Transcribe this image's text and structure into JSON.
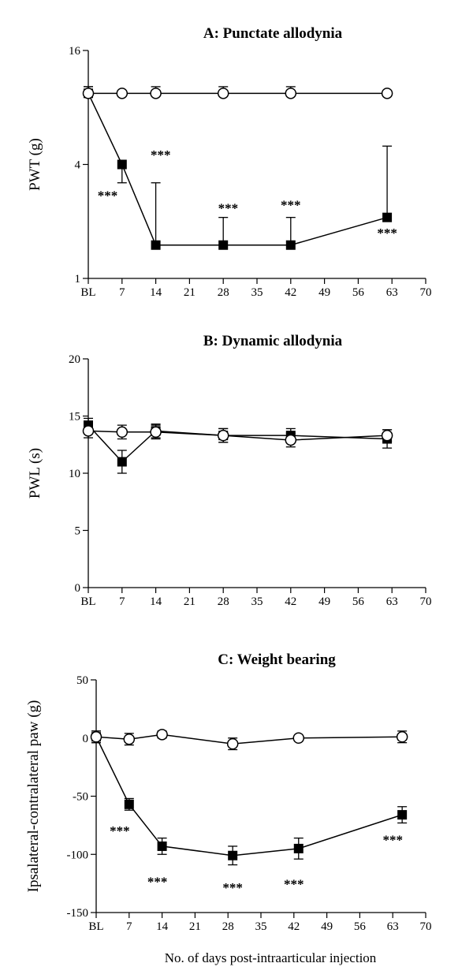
{
  "figure": {
    "xlabel": "No. of days post-intraarticular injection"
  },
  "chart_data": [
    {
      "id": "A",
      "type": "line",
      "title": "A: Punctate allodynia",
      "ylabel": "PWT (g)",
      "yscale": "log",
      "ylim": [
        1,
        16
      ],
      "yticks": [
        1,
        4,
        16
      ],
      "ytick_labels": [
        "1",
        "4",
        "16"
      ],
      "xlim": [
        0,
        70
      ],
      "xticks": [
        0,
        7,
        14,
        21,
        28,
        35,
        42,
        49,
        56,
        63,
        70
      ],
      "xtick_labels": [
        "BL",
        "7",
        "14",
        "21",
        "28",
        "35",
        "42",
        "49",
        "56",
        "63",
        "70"
      ],
      "series": [
        {
          "marker": "filled-square",
          "color": "#000000",
          "x": [
            0,
            7,
            14,
            28,
            42,
            62
          ],
          "y": [
            9.5,
            4.0,
            1.5,
            1.5,
            1.5,
            2.1
          ],
          "err_up": [
            10.3,
            4.0,
            3.2,
            2.1,
            2.1,
            5.0
          ],
          "err_down": [
            9.5,
            3.2,
            1.5,
            1.5,
            1.5,
            2.1
          ]
        },
        {
          "marker": "open-circle",
          "color": "#000000",
          "x": [
            0,
            7,
            14,
            28,
            42,
            62
          ],
          "y": [
            9.5,
            9.5,
            9.5,
            9.5,
            9.5,
            9.5
          ],
          "err_up": [
            10.3,
            9.5,
            10.3,
            10.3,
            10.3,
            9.5
          ],
          "err_down": [
            9.5,
            9.5,
            9.5,
            9.5,
            9.5,
            9.5
          ]
        }
      ],
      "annotations": [
        {
          "text": "***",
          "x": 4,
          "y": 2.8
        },
        {
          "text": "***",
          "x": 15,
          "y": 4.6
        },
        {
          "text": "***",
          "x": 29,
          "y": 2.4
        },
        {
          "text": "***",
          "x": 42,
          "y": 2.5
        },
        {
          "text": "***",
          "x": 62,
          "y": 1.78
        }
      ]
    },
    {
      "id": "B",
      "type": "line",
      "title": "B: Dynamic allodynia",
      "ylabel": "PWL (s)",
      "yscale": "linear",
      "ylim": [
        0,
        20
      ],
      "yticks": [
        0,
        5,
        10,
        15,
        20
      ],
      "ytick_labels": [
        "0",
        "5",
        "10",
        "15",
        "20"
      ],
      "xlim": [
        0,
        70
      ],
      "xticks": [
        0,
        7,
        14,
        21,
        28,
        35,
        42,
        49,
        56,
        63,
        70
      ],
      "xtick_labels": [
        "BL",
        "7",
        "14",
        "21",
        "28",
        "35",
        "42",
        "49",
        "56",
        "63",
        "70"
      ],
      "series": [
        {
          "marker": "filled-square",
          "color": "#000000",
          "x": [
            0,
            7,
            14,
            28,
            42,
            62
          ],
          "y": [
            14.2,
            11.0,
            13.7,
            13.3,
            13.3,
            13.0
          ],
          "err": [
            0.6,
            1.0,
            0.6,
            0.6,
            0.6,
            0.8
          ]
        },
        {
          "marker": "open-circle",
          "color": "#000000",
          "x": [
            0,
            7,
            14,
            28,
            42,
            62
          ],
          "y": [
            13.7,
            13.6,
            13.6,
            13.3,
            12.9,
            13.3
          ],
          "err": [
            0.6,
            0.6,
            0.6,
            0.6,
            0.6,
            0.5
          ]
        }
      ]
    },
    {
      "id": "C",
      "type": "line",
      "title": "C: Weight bearing",
      "ylabel": "Ipsalateral-contralateral paw (g)",
      "yscale": "linear",
      "ylim": [
        -150,
        50
      ],
      "yticks": [
        -150,
        -100,
        -50,
        0,
        50
      ],
      "ytick_labels": [
        "-150",
        "-100",
        "-50",
        "0",
        "50"
      ],
      "xlim": [
        0,
        70
      ],
      "xticks": [
        0,
        7,
        14,
        21,
        28,
        35,
        42,
        49,
        56,
        63,
        70
      ],
      "xtick_labels": [
        "BL",
        "7",
        "14",
        "21",
        "28",
        "35",
        "42",
        "49",
        "56",
        "63",
        "70"
      ],
      "series": [
        {
          "marker": "filled-square",
          "color": "#000000",
          "x": [
            0,
            7,
            14,
            29,
            43,
            65
          ],
          "y": [
            1,
            -57,
            -93,
            -101,
            -95,
            -66
          ],
          "err": [
            5,
            5,
            7,
            8,
            9,
            7
          ]
        },
        {
          "marker": "open-circle",
          "color": "#000000",
          "x": [
            0,
            7,
            14,
            29,
            43,
            65
          ],
          "y": [
            1,
            -1,
            3,
            -5,
            0,
            1
          ],
          "err": [
            5,
            5,
            3,
            5,
            2,
            5
          ]
        }
      ],
      "annotations": [
        {
          "text": "***",
          "x": 5,
          "y": -78
        },
        {
          "text": "***",
          "x": 13,
          "y": -122
        },
        {
          "text": "***",
          "x": 29,
          "y": -127
        },
        {
          "text": "***",
          "x": 42,
          "y": -124
        },
        {
          "text": "***",
          "x": 63,
          "y": -86
        }
      ]
    }
  ]
}
